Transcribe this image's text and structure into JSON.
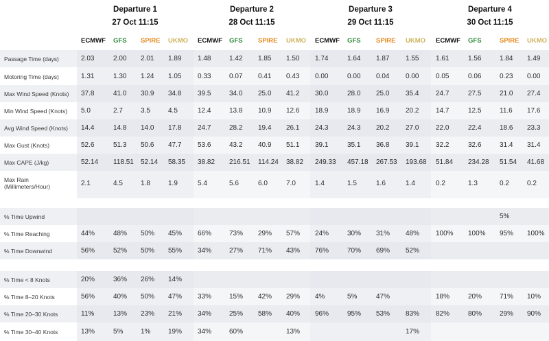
{
  "departures": [
    {
      "title": "Departure 1",
      "date": "27 Oct 11:15"
    },
    {
      "title": "Departure 2",
      "date": "28 Oct 11:15"
    },
    {
      "title": "Departure 3",
      "date": "29 Oct 11:15"
    },
    {
      "title": "Departure 4",
      "date": "30 Oct 11:15"
    }
  ],
  "models": [
    {
      "name": "ECMWF",
      "color": "#111111"
    },
    {
      "name": "GFS",
      "color": "#2f8a3a"
    },
    {
      "name": "SPIRE",
      "color": "#e58a1f"
    },
    {
      "name": "UKMO",
      "color": "#cdb35c"
    }
  ],
  "colors": {
    "alt_row": "#f2f3f5",
    "dark_col": "#e4e6ea",
    "light_col": "#eceef1",
    "group_gap": "#f6f6f7"
  },
  "groups": [
    {
      "rows": [
        {
          "label": "Passage Time (days)",
          "values": [
            [
              "2.03",
              "2.00",
              "2.01",
              "1.89"
            ],
            [
              "1.48",
              "1.42",
              "1.85",
              "1.50"
            ],
            [
              "1.74",
              "1.64",
              "1.87",
              "1.55"
            ],
            [
              "1.61",
              "1.56",
              "1.84",
              "1.49"
            ]
          ]
        },
        {
          "label": "Motoring Time (days)",
          "values": [
            [
              "1.31",
              "1.30",
              "1.24",
              "1.05"
            ],
            [
              "0.33",
              "0.07",
              "0.41",
              "0.43"
            ],
            [
              "0.00",
              "0.00",
              "0.04",
              "0.00"
            ],
            [
              "0.05",
              "0.06",
              "0.23",
              "0.00"
            ]
          ]
        },
        {
          "label": "Max Wind Speed (Knots)",
          "values": [
            [
              "37.8",
              "41.0",
              "30.9",
              "34.8"
            ],
            [
              "39.5",
              "34.0",
              "25.0",
              "41.2"
            ],
            [
              "30.0",
              "28.0",
              "25.0",
              "35.4"
            ],
            [
              "24.7",
              "27.5",
              "21.0",
              "27.4"
            ]
          ]
        },
        {
          "label": "Min Wind Speed (Knots)",
          "values": [
            [
              "5.0",
              "2.7",
              "3.5",
              "4.5"
            ],
            [
              "12.4",
              "13.8",
              "10.9",
              "12.6"
            ],
            [
              "18.9",
              "18.9",
              "16.9",
              "20.2"
            ],
            [
              "14.7",
              "12.5",
              "11.6",
              "17.6"
            ]
          ]
        },
        {
          "label": "Avg Wind Speed (Knots)",
          "values": [
            [
              "14.4",
              "14.8",
              "14.0",
              "17.8"
            ],
            [
              "24.7",
              "28.2",
              "19.4",
              "26.1"
            ],
            [
              "24.3",
              "24.3",
              "20.2",
              "27.0"
            ],
            [
              "22.0",
              "22.4",
              "18.6",
              "23.3"
            ]
          ]
        },
        {
          "label": "Max Gust (Knots)",
          "values": [
            [
              "52.6",
              "51.3",
              "50.6",
              "47.7"
            ],
            [
              "53.6",
              "43.2",
              "40.9",
              "51.1"
            ],
            [
              "39.1",
              "35.1",
              "36.8",
              "39.1"
            ],
            [
              "32.2",
              "32.6",
              "31.4",
              "31.4"
            ]
          ]
        },
        {
          "label": "Max CAPE (J/kg)",
          "values": [
            [
              "52.14",
              "118.51",
              "52.14",
              "58.35"
            ],
            [
              "38.82",
              "216.51",
              "114.24",
              "38.82"
            ],
            [
              "249.33",
              "457.18",
              "267.53",
              "193.68"
            ],
            [
              "51.84",
              "234.28",
              "51.54",
              "41.68"
            ]
          ]
        },
        {
          "label": "Max Rain (Millimeters/Hour)",
          "tall": true,
          "values": [
            [
              "2.1",
              "4.5",
              "1.8",
              "1.9"
            ],
            [
              "5.4",
              "5.6",
              "6.0",
              "7.0"
            ],
            [
              "1.4",
              "1.5",
              "1.6",
              "1.4"
            ],
            [
              "0.2",
              "1.3",
              "0.2",
              "0.2"
            ]
          ]
        }
      ]
    },
    {
      "rows": [
        {
          "label": "% Time Upwind",
          "values": [
            [
              "",
              "",
              "",
              ""
            ],
            [
              "",
              "",
              "",
              ""
            ],
            [
              "",
              "",
              "",
              ""
            ],
            [
              "",
              "",
              "5%",
              ""
            ]
          ]
        },
        {
          "label": "% Time Reaching",
          "values": [
            [
              "44%",
              "48%",
              "50%",
              "45%"
            ],
            [
              "66%",
              "73%",
              "29%",
              "57%"
            ],
            [
              "24%",
              "30%",
              "31%",
              "48%"
            ],
            [
              "100%",
              "100%",
              "95%",
              "100%"
            ]
          ]
        },
        {
          "label": "% Time Downwind",
          "values": [
            [
              "56%",
              "52%",
              "50%",
              "55%"
            ],
            [
              "34%",
              "27%",
              "71%",
              "43%"
            ],
            [
              "76%",
              "70%",
              "69%",
              "52%"
            ],
            [
              "",
              "",
              "",
              ""
            ]
          ]
        }
      ]
    },
    {
      "rows": [
        {
          "label": "% Time < 8 Knots",
          "values": [
            [
              "20%",
              "36%",
              "26%",
              "14%"
            ],
            [
              "",
              "",
              "",
              ""
            ],
            [
              "",
              "",
              "",
              ""
            ],
            [
              "",
              "",
              "",
              ""
            ]
          ]
        },
        {
          "label": "% Time 8–20 Knots",
          "values": [
            [
              "56%",
              "40%",
              "50%",
              "47%"
            ],
            [
              "33%",
              "15%",
              "42%",
              "29%"
            ],
            [
              "4%",
              "5%",
              "47%",
              ""
            ],
            [
              "18%",
              "20%",
              "71%",
              "10%"
            ]
          ]
        },
        {
          "label": "% Time 20–30 Knots",
          "values": [
            [
              "11%",
              "13%",
              "23%",
              "21%"
            ],
            [
              "34%",
              "25%",
              "58%",
              "40%"
            ],
            [
              "96%",
              "95%",
              "53%",
              "83%"
            ],
            [
              "82%",
              "80%",
              "29%",
              "90%"
            ]
          ]
        },
        {
          "label": "% Time 30–40 Knots",
          "values": [
            [
              "13%",
              "5%",
              "1%",
              "19%"
            ],
            [
              "34%",
              "60%",
              "",
              "13%"
            ],
            [
              "",
              "",
              "",
              "17%"
            ],
            [
              "",
              "",
              "",
              ""
            ]
          ]
        }
      ]
    }
  ]
}
